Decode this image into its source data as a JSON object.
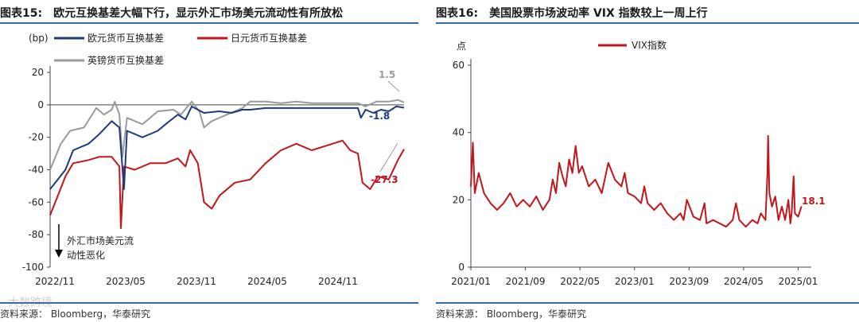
{
  "chart_data": [
    {
      "type": "line",
      "figure_label": "图表15:",
      "title": "欧元互换基差大幅下行，显示外汇市场美元流动性有所放松",
      "ylabel": "(bp)",
      "ylim": [
        -100,
        20
      ],
      "yticks": [
        "20",
        "0",
        "-20",
        "-40",
        "-60",
        "-80",
        "-100"
      ],
      "xticks": [
        "2022/11",
        "2023/05",
        "2023/11",
        "2024/05",
        "2024/11"
      ],
      "legend_placement": "top",
      "series": [
        {
          "name": "欧元货币互换基差",
          "color": "#1f3a7a",
          "points": [
            [
              0,
              -52
            ],
            [
              1.0,
              -40
            ],
            [
              1.5,
              -28
            ],
            [
              2.5,
              -24
            ],
            [
              3.2,
              -18
            ],
            [
              4.0,
              -10
            ],
            [
              4.5,
              -14
            ],
            [
              4.8,
              -52
            ],
            [
              5.0,
              -16
            ],
            [
              6.0,
              -20
            ],
            [
              7.0,
              -16
            ],
            [
              7.5,
              -12
            ],
            [
              8.3,
              -6
            ],
            [
              8.8,
              -9
            ],
            [
              9.2,
              -1
            ],
            [
              10.0,
              -5
            ],
            [
              11.0,
              -4
            ],
            [
              11.8,
              -5
            ],
            [
              12.5,
              -3
            ],
            [
              13.0,
              -3
            ],
            [
              14.0,
              -2
            ],
            [
              15.0,
              -2
            ],
            [
              16.0,
              -2
            ],
            [
              17.0,
              -2
            ],
            [
              18.0,
              -2
            ],
            [
              19.0,
              -2
            ],
            [
              20.0,
              -2
            ],
            [
              20.2,
              -8
            ],
            [
              20.5,
              -3
            ],
            [
              21.0,
              -5
            ],
            [
              21.5,
              -3
            ],
            [
              22.0,
              -4
            ],
            [
              22.5,
              -1
            ],
            [
              23.0,
              -1.8
            ]
          ],
          "end_label": "-1.8"
        },
        {
          "name": "日元货币互换基差",
          "color": "#c0161c",
          "points": [
            [
              0,
              -68
            ],
            [
              0.5,
              -56
            ],
            [
              1.0,
              -44
            ],
            [
              1.5,
              -36
            ],
            [
              2.5,
              -34
            ],
            [
              3.2,
              -32
            ],
            [
              4.0,
              -32
            ],
            [
              4.5,
              -38
            ],
            [
              4.6,
              -76
            ],
            [
              4.8,
              -38
            ],
            [
              5.5,
              -40
            ],
            [
              6.5,
              -36
            ],
            [
              7.5,
              -36
            ],
            [
              8.3,
              -33
            ],
            [
              8.8,
              -38
            ],
            [
              9.1,
              -28
            ],
            [
              9.6,
              -36
            ],
            [
              10.0,
              -60
            ],
            [
              10.5,
              -64
            ],
            [
              11.0,
              -56
            ],
            [
              12.0,
              -48
            ],
            [
              13.0,
              -46
            ],
            [
              14.0,
              -36
            ],
            [
              15.0,
              -28
            ],
            [
              16.0,
              -24
            ],
            [
              17.0,
              -28
            ],
            [
              18.0,
              -25
            ],
            [
              19.0,
              -22
            ],
            [
              19.5,
              -28
            ],
            [
              20.0,
              -30
            ],
            [
              20.3,
              -48
            ],
            [
              20.8,
              -52
            ],
            [
              21.3,
              -44
            ],
            [
              22.0,
              -46
            ],
            [
              22.6,
              -34
            ],
            [
              23.0,
              -27.3
            ]
          ],
          "end_label": "-27.3"
        },
        {
          "name": "英镑货币互换基差",
          "color": "#9a9a9a",
          "points": [
            [
              0,
              -40
            ],
            [
              0.7,
              -24
            ],
            [
              1.3,
              -16
            ],
            [
              2.2,
              -14
            ],
            [
              3.0,
              -2
            ],
            [
              3.5,
              -6
            ],
            [
              4.0,
              -3
            ],
            [
              4.2,
              2
            ],
            [
              4.5,
              -6
            ],
            [
              4.7,
              -32
            ],
            [
              5.0,
              -8
            ],
            [
              6.0,
              -12
            ],
            [
              7.0,
              -4
            ],
            [
              8.0,
              -3
            ],
            [
              8.5,
              -6
            ],
            [
              9.2,
              2
            ],
            [
              9.7,
              -4
            ],
            [
              10.0,
              -14
            ],
            [
              10.5,
              -10
            ],
            [
              11.5,
              -6
            ],
            [
              12.5,
              -2
            ],
            [
              13.0,
              2
            ],
            [
              14.0,
              2
            ],
            [
              15.0,
              1
            ],
            [
              16.0,
              2
            ],
            [
              17.0,
              1
            ],
            [
              18.0,
              1
            ],
            [
              19.0,
              1
            ],
            [
              20.0,
              1
            ],
            [
              20.5,
              -1
            ],
            [
              21.2,
              2
            ],
            [
              22.0,
              2
            ],
            [
              22.6,
              3
            ],
            [
              23.0,
              1.5
            ]
          ],
          "end_label": "1.5"
        }
      ],
      "annotation": [
        "外汇市场美元流",
        "动性恶化"
      ],
      "source": "资料来源：  Bloomberg，华泰研究"
    },
    {
      "type": "line",
      "figure_label": "图表16:",
      "title": "美国股票市场波动率 VIX 指数较上一周上行",
      "ylabel": "点",
      "ylim": [
        0,
        60
      ],
      "yticks": [
        "60",
        "40",
        "20",
        "0"
      ],
      "xticks": [
        "2021/01",
        "2021/09",
        "2022/05",
        "2023/01",
        "2023/09",
        "2024/05",
        "2025/01"
      ],
      "legend_placement": "top",
      "series": [
        {
          "name": "VIX指数",
          "color": "#c0161c",
          "points": [
            [
              0,
              24
            ],
            [
              0.3,
              37
            ],
            [
              0.6,
              22
            ],
            [
              1.2,
              28
            ],
            [
              2,
              22
            ],
            [
              3,
              19
            ],
            [
              4,
              17
            ],
            [
              5,
              19
            ],
            [
              6,
              22
            ],
            [
              7,
              18
            ],
            [
              8,
              20
            ],
            [
              9,
              18
            ],
            [
              10,
              21
            ],
            [
              11,
              17
            ],
            [
              12,
              20
            ],
            [
              12.5,
              26
            ],
            [
              13,
              22
            ],
            [
              13.5,
              31
            ],
            [
              14,
              27
            ],
            [
              14.5,
              24
            ],
            [
              15,
              32
            ],
            [
              15.5,
              28
            ],
            [
              16,
              36
            ],
            [
              16.5,
              28
            ],
            [
              17,
              30
            ],
            [
              18,
              24
            ],
            [
              19,
              26
            ],
            [
              20,
              22
            ],
            [
              21,
              31
            ],
            [
              22,
              26
            ],
            [
              23,
              24
            ],
            [
              23.5,
              28
            ],
            [
              24,
              22
            ],
            [
              25,
              21
            ],
            [
              26,
              19
            ],
            [
              26.5,
              24
            ],
            [
              27,
              19
            ],
            [
              28,
              17
            ],
            [
              29,
              19
            ],
            [
              30,
              16
            ],
            [
              31,
              14
            ],
            [
              32,
              16
            ],
            [
              32.5,
              14
            ],
            [
              33,
              20
            ],
            [
              34,
              15
            ],
            [
              35,
              14
            ],
            [
              35.7,
              19
            ],
            [
              36,
              13
            ],
            [
              37,
              14
            ],
            [
              38,
              13
            ],
            [
              39,
              12
            ],
            [
              40,
              14
            ],
            [
              40.5,
              19
            ],
            [
              41,
              14
            ],
            [
              42,
              12
            ],
            [
              43,
              14
            ],
            [
              43.8,
              13
            ],
            [
              44.3,
              16
            ],
            [
              45,
              14
            ],
            [
              45.3,
              28
            ],
            [
              45.4,
              39
            ],
            [
              45.6,
              22
            ],
            [
              46,
              18
            ],
            [
              46.5,
              21
            ],
            [
              47,
              14
            ],
            [
              47.5,
              18
            ],
            [
              48,
              14
            ],
            [
              48.5,
              20
            ],
            [
              48.8,
              13
            ],
            [
              49,
              16
            ],
            [
              49.3,
              27
            ],
            [
              49.5,
              16
            ],
            [
              50,
              15
            ],
            [
              50.5,
              18.1
            ]
          ],
          "end_label": "18.1"
        }
      ],
      "source": "资料来源：  Bloomberg，华泰研究"
    }
  ],
  "watermark": "大数跨境"
}
